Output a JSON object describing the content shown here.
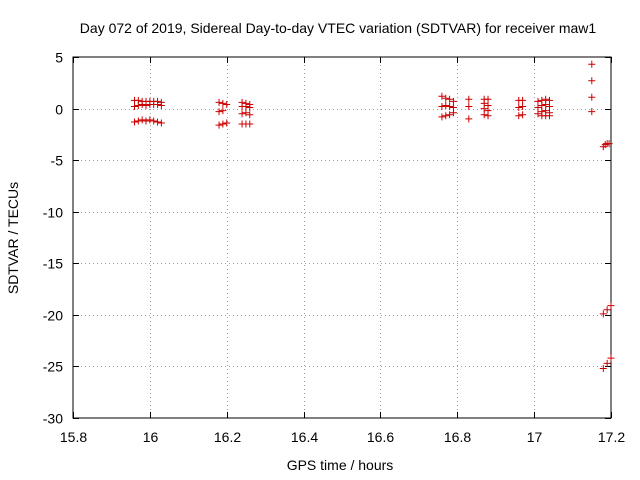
{
  "chart_data": {
    "type": "scatter",
    "title": "Day 072 of 2019, Sidereal Day-to-day VTEC variation (SDTVAR) for receiver maw1",
    "xlabel": "GPS time / hours",
    "ylabel": "SDTVAR / TECUs",
    "xlim": [
      15.8,
      17.2
    ],
    "ylim": [
      -30,
      5
    ],
    "xticks": [
      15.8,
      16,
      16.2,
      16.4,
      16.6,
      16.8,
      17,
      17.2
    ],
    "xtick_labels": [
      "15.8",
      "16",
      "16.2",
      "16.4",
      "16.6",
      "16.8",
      "17",
      "17.2"
    ],
    "yticks": [
      5,
      0,
      -5,
      -10,
      -15,
      -20,
      -25,
      -30
    ],
    "ytick_labels": [
      "5",
      "0",
      "-5",
      "-10",
      "-15",
      "-20",
      "-25",
      "-30"
    ],
    "grid": true,
    "marker": "+",
    "color": "#cc0000",
    "series": [
      {
        "name": "maw1",
        "points": [
          [
            15.96,
            0.8
          ],
          [
            15.96,
            0.2
          ],
          [
            15.96,
            -1.3
          ],
          [
            15.97,
            0.8
          ],
          [
            15.97,
            0.3
          ],
          [
            15.97,
            -1.2
          ],
          [
            15.98,
            0.7
          ],
          [
            15.98,
            0.4
          ],
          [
            15.98,
            -1.1
          ],
          [
            15.99,
            0.7
          ],
          [
            15.99,
            0.3
          ],
          [
            15.99,
            -1.2
          ],
          [
            16.0,
            0.7
          ],
          [
            16.0,
            0.4
          ],
          [
            16.0,
            -1.1
          ],
          [
            16.01,
            0.7
          ],
          [
            16.01,
            0.4
          ],
          [
            16.01,
            -1.2
          ],
          [
            16.02,
            0.7
          ],
          [
            16.02,
            0.4
          ],
          [
            16.02,
            -1.3
          ],
          [
            16.03,
            0.6
          ],
          [
            16.03,
            0.3
          ],
          [
            16.03,
            -1.4
          ],
          [
            16.18,
            0.6
          ],
          [
            16.18,
            -0.3
          ],
          [
            16.18,
            -1.6
          ],
          [
            16.19,
            0.5
          ],
          [
            16.19,
            -0.2
          ],
          [
            16.19,
            -1.5
          ],
          [
            16.2,
            0.4
          ],
          [
            16.2,
            -1.4
          ],
          [
            16.24,
            0.6
          ],
          [
            16.24,
            0.2
          ],
          [
            16.24,
            -0.5
          ],
          [
            16.24,
            -1.5
          ],
          [
            16.25,
            0.5
          ],
          [
            16.25,
            0.2
          ],
          [
            16.25,
            -0.4
          ],
          [
            16.25,
            -1.5
          ],
          [
            16.26,
            0.4
          ],
          [
            16.26,
            0.1
          ],
          [
            16.26,
            -0.6
          ],
          [
            16.26,
            -1.5
          ],
          [
            16.76,
            1.2
          ],
          [
            16.76,
            0.2
          ],
          [
            16.76,
            -0.8
          ],
          [
            16.77,
            1.0
          ],
          [
            16.77,
            0.3
          ],
          [
            16.77,
            -0.7
          ],
          [
            16.78,
            0.9
          ],
          [
            16.78,
            0.2
          ],
          [
            16.78,
            -0.6
          ],
          [
            16.79,
            0.7
          ],
          [
            16.79,
            0.1
          ],
          [
            16.79,
            -0.4
          ],
          [
            16.83,
            0.9
          ],
          [
            16.83,
            0.2
          ],
          [
            16.83,
            -1.0
          ],
          [
            16.87,
            0.9
          ],
          [
            16.87,
            0.5
          ],
          [
            16.87,
            0.0
          ],
          [
            16.87,
            -0.6
          ],
          [
            16.88,
            0.9
          ],
          [
            16.88,
            0.3
          ],
          [
            16.88,
            -0.2
          ],
          [
            16.88,
            -0.7
          ],
          [
            16.96,
            0.8
          ],
          [
            16.96,
            0.1
          ],
          [
            16.96,
            -0.7
          ],
          [
            16.97,
            0.8
          ],
          [
            16.97,
            0.2
          ],
          [
            16.97,
            -0.6
          ],
          [
            17.01,
            0.7
          ],
          [
            17.01,
            0.1
          ],
          [
            17.01,
            -0.5
          ],
          [
            17.02,
            0.8
          ],
          [
            17.02,
            0.3
          ],
          [
            17.02,
            -0.3
          ],
          [
            17.02,
            -0.7
          ],
          [
            17.03,
            0.9
          ],
          [
            17.03,
            0.4
          ],
          [
            17.03,
            -0.2
          ],
          [
            17.03,
            -0.7
          ],
          [
            17.04,
            0.8
          ],
          [
            17.04,
            0.2
          ],
          [
            17.04,
            -0.4
          ],
          [
            17.04,
            -0.7
          ],
          [
            17.15,
            4.3
          ],
          [
            17.15,
            2.7
          ],
          [
            17.15,
            1.1
          ],
          [
            17.15,
            -0.3
          ],
          [
            17.18,
            -3.7
          ],
          [
            17.185,
            -3.5
          ],
          [
            17.19,
            -3.4
          ],
          [
            17.195,
            -3.4
          ],
          [
            17.18,
            -19.9
          ],
          [
            17.19,
            -19.5
          ],
          [
            17.2,
            -19.1
          ],
          [
            17.18,
            -25.2
          ],
          [
            17.19,
            -24.7
          ],
          [
            17.2,
            -24.2
          ]
        ]
      }
    ]
  }
}
